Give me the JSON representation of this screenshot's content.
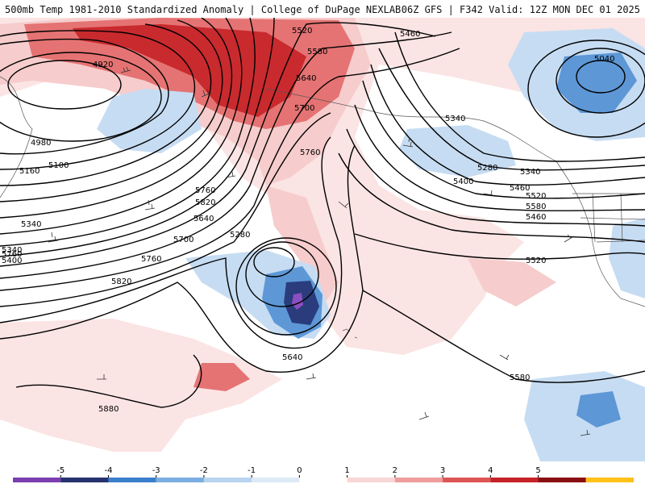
{
  "header": {
    "title_left": "500mb Temp 1981-2010 Standardized Anomaly | College of DuPage NEXLAB",
    "title_right": "06Z GFS | F342 Valid: 12Z MON DEC 01 2025"
  },
  "contour_labels": [
    "4920",
    "4980",
    "5100",
    "5160",
    "5340",
    "5280",
    "5340",
    "5400",
    "5460",
    "5520",
    "5580",
    "5640",
    "5700",
    "5760",
    "5820",
    "5880",
    "5640",
    "5580",
    "5520",
    "5460",
    "5700",
    "5760",
    "5040",
    "5340",
    "5280",
    "5340",
    "5400",
    "5460",
    "5520",
    "5580",
    "5640",
    "5760",
    "5820",
    "5760",
    "5520",
    "5580",
    "5520"
  ],
  "colorbar": {
    "ticks": [
      "-5",
      "-4",
      "-3",
      "-2",
      "-1",
      "0",
      "1",
      "2",
      "3",
      "4",
      "5"
    ],
    "colors": [
      "#7b3fb0",
      "#27336f",
      "#3a7fcc",
      "#7aaee0",
      "#b9d4ee",
      "#dde9f6",
      "#ffffff",
      "#f9d6d6",
      "#ef9d9d",
      "#de5555",
      "#c52328",
      "#8a0f12",
      "#ffc11a"
    ]
  },
  "anomaly_colors": {
    "strong_positive": "#c92a2e",
    "moderate_positive": "#e57373",
    "weak_positive": "#f6cccc",
    "faint_positive": "#fbe4e4",
    "weak_negative": "#c6dcf2",
    "moderate_negative": "#5d97d6",
    "strong_negative": "#2a3c7c",
    "extreme_negative": "#8a4fc1"
  }
}
